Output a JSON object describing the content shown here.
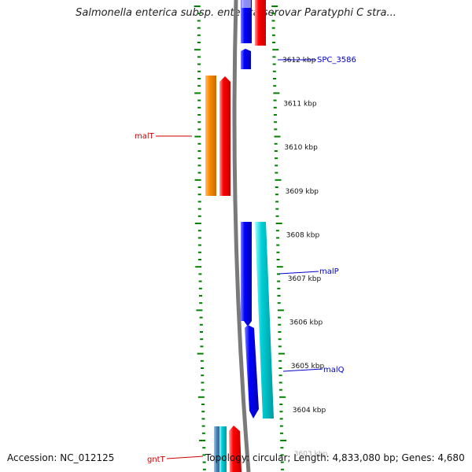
{
  "title": "Salmonella enterica subsp. enterica serovar Paratyphi C stra...",
  "footer": {
    "accession_label": "Accession:",
    "accession_value": "NC_012125",
    "topology_label": "Topology:",
    "topology_value": "circular;",
    "length_label": "Length:",
    "length_value": "4,833,080 bp;",
    "genes_label": "Genes:",
    "genes_value": "4,680"
  },
  "kbp_ticks": [
    {
      "label": "3612 kbp"
    },
    {
      "label": "3611 kbp"
    },
    {
      "label": "3610 kbp"
    },
    {
      "label": "3609 kbp"
    },
    {
      "label": "3608 kbp"
    },
    {
      "label": "3607 kbp"
    },
    {
      "label": "3606 kbp"
    },
    {
      "label": "3605 kbp"
    },
    {
      "label": "3604 kbp"
    },
    {
      "label": "3603 kbp"
    }
  ],
  "gene_labels": [
    {
      "name": "SPC_3586",
      "color": "#0000cc"
    },
    {
      "name": "malT",
      "color": "#cc0000"
    },
    {
      "name": "malP",
      "color": "#0000cc"
    },
    {
      "name": "malQ",
      "color": "#0000cc"
    },
    {
      "name": "gntT",
      "color": "#cc0000"
    }
  ],
  "colors": {
    "forward_gene": "#ff0000",
    "forward_rna": "#ff8c00",
    "reverse_gene": "#0000ff",
    "reverse_rna": "#00c8d0",
    "backbone": "#7a7a7a",
    "tick_ring": "#008000"
  }
}
